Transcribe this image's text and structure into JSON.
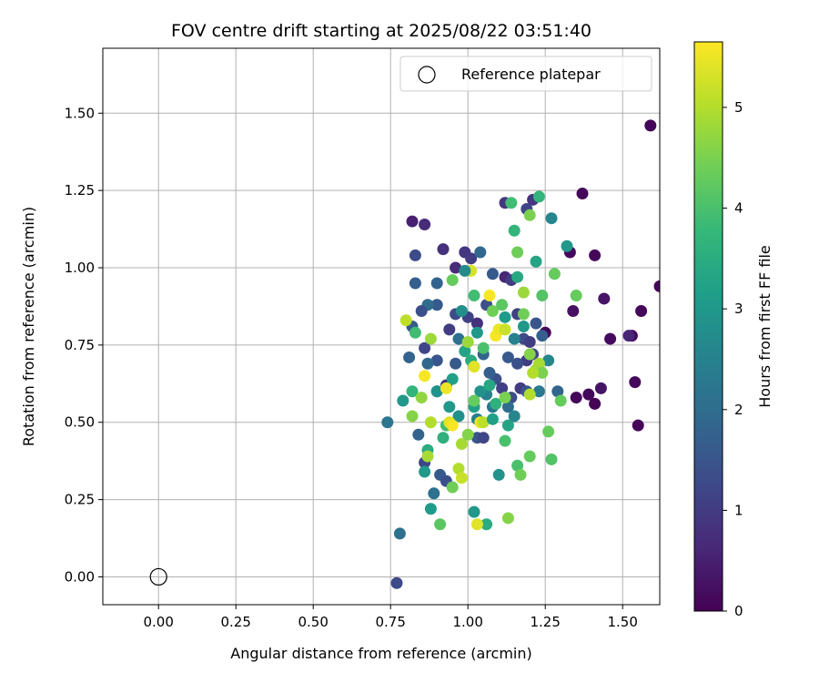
{
  "chart_data": {
    "type": "scatter",
    "title": "FOV centre drift starting at 2025/08/22 03:51:40",
    "xlabel": "Angular distance from reference (arcmin)",
    "ylabel": "Rotation from reference (arcmin)",
    "xlim": [
      -0.18,
      1.62
    ],
    "ylim": [
      -0.09,
      1.71
    ],
    "xticks": [
      0.0,
      0.25,
      0.5,
      0.75,
      1.0,
      1.25,
      1.5
    ],
    "xtick_labels": [
      "0.00",
      "0.25",
      "0.50",
      "0.75",
      "1.00",
      "1.25",
      "1.50"
    ],
    "yticks": [
      0.0,
      0.25,
      0.5,
      0.75,
      1.0,
      1.25,
      1.5
    ],
    "ytick_labels": [
      "0.00",
      "0.25",
      "0.50",
      "0.75",
      "1.00",
      "1.25",
      "1.50"
    ],
    "grid": true,
    "legend": {
      "placement": "top-right",
      "entries": [
        {
          "label": "Reference platepar",
          "marker": "open-circle"
        }
      ]
    },
    "reference_point": {
      "x": 0.0,
      "y": 0.0,
      "label": "Reference platepar"
    },
    "colorbar": {
      "label": "Hours from first FF file",
      "colormap": "viridis",
      "range": [
        0,
        5.65
      ],
      "ticks": [
        0,
        1,
        2,
        3,
        4,
        5
      ],
      "tick_labels": [
        "0",
        "1",
        "2",
        "3",
        "4",
        "5"
      ],
      "stops": [
        "#440154",
        "#482878",
        "#3e4989",
        "#31688e",
        "#26828e",
        "#1f9e89",
        "#35b779",
        "#6ece58",
        "#b5de2b",
        "#fde725"
      ]
    },
    "series": [
      {
        "columns": [
          "x",
          "y",
          "hours"
        ],
        "points": [
          [
            1.59,
            1.46,
            0.05
          ],
          [
            1.62,
            0.94,
            0.1
          ],
          [
            1.37,
            1.24,
            0.1
          ],
          [
            1.41,
            1.04,
            0.1
          ],
          [
            1.33,
            1.05,
            0.15
          ],
          [
            1.56,
            0.86,
            0.1
          ],
          [
            1.53,
            0.78,
            0.1
          ],
          [
            1.46,
            0.77,
            0.15
          ],
          [
            1.44,
            0.9,
            0.3
          ],
          [
            1.34,
            0.86,
            0.25
          ],
          [
            1.54,
            0.63,
            0.1
          ],
          [
            1.43,
            0.61,
            0.3
          ],
          [
            1.39,
            0.59,
            0.1
          ],
          [
            1.35,
            0.58,
            0.1
          ],
          [
            1.41,
            0.56,
            0.05
          ],
          [
            1.55,
            0.49,
            0.05
          ],
          [
            1.25,
            0.79,
            0.05
          ],
          [
            1.52,
            0.78,
            0.6
          ],
          [
            0.82,
            1.15,
            0.5
          ],
          [
            0.86,
            1.14,
            0.7
          ],
          [
            0.92,
            1.06,
            0.8
          ],
          [
            0.83,
            1.04,
            1.3
          ],
          [
            0.99,
            1.05,
            0.9
          ],
          [
            0.96,
            1.0,
            0.7
          ],
          [
            1.01,
            1.03,
            1.0
          ],
          [
            1.12,
            1.21,
            0.9
          ],
          [
            1.19,
            1.19,
            1.2
          ],
          [
            1.21,
            1.22,
            0.9
          ],
          [
            1.04,
            1.05,
            1.9
          ],
          [
            0.83,
            0.95,
            1.7
          ],
          [
            0.9,
            0.95,
            1.8
          ],
          [
            0.9,
            0.88,
            1.6
          ],
          [
            0.87,
            0.88,
            2.0
          ],
          [
            0.85,
            0.86,
            1.4
          ],
          [
            0.82,
            0.81,
            1.6
          ],
          [
            0.81,
            0.71,
            1.8
          ],
          [
            0.86,
            0.74,
            1.2
          ],
          [
            0.9,
            0.7,
            1.5
          ],
          [
            0.87,
            0.69,
            1.9
          ],
          [
            0.93,
            0.62,
            0.9
          ],
          [
            0.96,
            0.69,
            1.6
          ],
          [
            0.94,
            0.8,
            1.0
          ],
          [
            0.96,
            0.85,
            1.3
          ],
          [
            1.0,
            0.84,
            1.1
          ],
          [
            1.03,
            0.82,
            0.8
          ],
          [
            1.06,
            0.88,
            1.4
          ],
          [
            1.08,
            0.98,
            1.6
          ],
          [
            1.12,
            0.97,
            0.6
          ],
          [
            1.14,
            0.96,
            1.0
          ],
          [
            1.16,
            0.85,
            1.1
          ],
          [
            1.18,
            0.77,
            1.3
          ],
          [
            1.2,
            0.76,
            1.0
          ],
          [
            1.22,
            0.82,
            1.5
          ],
          [
            1.24,
            0.78,
            1.7
          ],
          [
            1.21,
            0.72,
            1.2
          ],
          [
            1.19,
            0.7,
            1.0
          ],
          [
            1.16,
            0.69,
            1.4
          ],
          [
            1.13,
            0.71,
            1.6
          ],
          [
            1.11,
            0.61,
            1.1
          ],
          [
            1.09,
            0.64,
            1.4
          ],
          [
            1.07,
            0.66,
            1.7
          ],
          [
            1.05,
            0.72,
            1.8
          ],
          [
            1.14,
            0.58,
            1.3
          ],
          [
            1.17,
            0.61,
            1.0
          ],
          [
            1.19,
            0.6,
            1.5
          ],
          [
            1.29,
            0.6,
            1.8
          ],
          [
            0.84,
            0.46,
            1.8
          ],
          [
            0.86,
            0.37,
            1.2
          ],
          [
            0.91,
            0.33,
            1.6
          ],
          [
            0.93,
            0.31,
            1.4
          ],
          [
            0.89,
            0.27,
            2.1
          ],
          [
            0.9,
            0.6,
            2.3
          ],
          [
            1.03,
            0.45,
            1.5
          ],
          [
            1.05,
            0.45,
            1.2
          ],
          [
            1.03,
            0.51,
            2.4
          ],
          [
            0.77,
            -0.02,
            1.3
          ],
          [
            0.74,
            0.5,
            2.2
          ],
          [
            0.78,
            0.14,
            2.1
          ],
          [
            1.13,
            0.55,
            2.0
          ],
          [
            1.08,
            0.55,
            2.2
          ],
          [
            1.06,
            0.59,
            2.5
          ],
          [
            1.23,
            0.6,
            2.3
          ],
          [
            0.79,
            0.57,
            3.0
          ],
          [
            0.82,
            0.6,
            3.7
          ],
          [
            0.86,
            0.34,
            3.0
          ],
          [
            0.87,
            0.41,
            3.5
          ],
          [
            0.88,
            0.22,
            3.1
          ],
          [
            0.9,
            0.6,
            2.9
          ],
          [
            0.92,
            0.45,
            3.6
          ],
          [
            0.94,
            0.55,
            3.0
          ],
          [
            0.95,
            0.64,
            3.2
          ],
          [
            0.97,
            0.52,
            2.8
          ],
          [
            0.98,
            0.86,
            2.8
          ],
          [
            0.99,
            0.73,
            3.3
          ],
          [
            1.01,
            0.7,
            3.5
          ],
          [
            1.02,
            0.55,
            3.2
          ],
          [
            1.04,
            0.6,
            2.9
          ],
          [
            1.07,
            0.62,
            3.4
          ],
          [
            1.09,
            0.56,
            3.6
          ],
          [
            1.1,
            0.33,
            2.9
          ],
          [
            1.13,
            0.49,
            3.3
          ],
          [
            1.15,
            0.52,
            2.6
          ],
          [
            1.12,
            0.84,
            3.1
          ],
          [
            1.16,
            0.97,
            3.4
          ],
          [
            1.18,
            0.81,
            3.0
          ],
          [
            1.22,
            1.02,
            3.3
          ],
          [
            1.27,
            1.16,
            2.6
          ],
          [
            1.23,
            1.23,
            3.7
          ],
          [
            1.26,
            0.7,
            2.6
          ],
          [
            1.32,
            1.07,
            3.0
          ],
          [
            1.02,
            0.21,
            3.0
          ],
          [
            1.06,
            0.17,
            3.5
          ],
          [
            1.14,
            1.21,
            3.9
          ],
          [
            1.15,
            1.12,
            3.7
          ],
          [
            1.02,
            0.91,
            3.9
          ],
          [
            0.93,
            0.49,
            3.9
          ],
          [
            0.91,
            0.17,
            4.2
          ],
          [
            0.95,
            0.29,
            4.4
          ],
          [
            0.82,
            0.52,
            4.6
          ],
          [
            0.83,
            0.79,
            3.9
          ],
          [
            0.88,
            0.77,
            4.8
          ],
          [
            0.95,
            0.96,
            4.3
          ],
          [
            0.98,
            0.43,
            4.9
          ],
          [
            1.0,
            0.46,
            4.6
          ],
          [
            1.02,
            0.57,
            4.3
          ],
          [
            1.05,
            0.74,
            4.0
          ],
          [
            1.08,
            0.86,
            4.4
          ],
          [
            1.11,
            0.88,
            4.2
          ],
          [
            1.12,
            0.44,
            4.0
          ],
          [
            1.13,
            0.19,
            4.6
          ],
          [
            1.16,
            0.36,
            4.0
          ],
          [
            1.17,
            0.33,
            4.4
          ],
          [
            1.2,
            0.39,
            4.3
          ],
          [
            1.22,
            0.67,
            4.7
          ],
          [
            1.23,
            0.69,
            4.9
          ],
          [
            1.24,
            0.66,
            4.5
          ],
          [
            1.26,
            0.47,
            4.3
          ],
          [
            1.27,
            0.38,
            4.1
          ],
          [
            1.28,
            0.98,
            4.3
          ],
          [
            1.24,
            0.91,
            4.1
          ],
          [
            1.2,
            1.17,
            4.5
          ],
          [
            1.35,
            0.91,
            4.3
          ],
          [
            1.3,
            0.57,
            4.3
          ],
          [
            1.16,
            1.05,
            4.4
          ],
          [
            1.18,
            0.92,
            4.8
          ],
          [
            1.2,
            0.72,
            4.6
          ],
          [
            1.1,
            0.8,
            4.9
          ],
          [
            0.8,
            0.83,
            5.1
          ],
          [
            0.85,
            0.58,
            4.7
          ],
          [
            0.86,
            0.65,
            5.6
          ],
          [
            0.87,
            0.39,
            4.9
          ],
          [
            0.88,
            0.5,
            5.0
          ],
          [
            0.93,
            0.61,
            5.5
          ],
          [
            0.94,
            0.5,
            5.4
          ],
          [
            0.97,
            0.35,
            5.0
          ],
          [
            0.98,
            0.32,
            5.2
          ],
          [
            1.01,
            0.99,
            5.3
          ],
          [
            1.02,
            0.68,
            5.4
          ],
          [
            1.04,
            0.5,
            5.5
          ],
          [
            1.03,
            0.17,
            5.4
          ],
          [
            1.05,
            0.5,
            5.1
          ],
          [
            1.07,
            0.91,
            5.6
          ],
          [
            1.09,
            0.78,
            5.6
          ],
          [
            1.1,
            0.8,
            5.5
          ],
          [
            1.12,
            0.8,
            5.2
          ],
          [
            1.21,
            0.66,
            5.0
          ],
          [
            1.2,
            0.59,
            5.0
          ],
          [
            0.95,
            0.49,
            5.6
          ],
          [
            1.18,
            0.85,
            4.4
          ],
          [
            0.99,
            0.99,
            2.7
          ],
          [
            1.03,
            0.79,
            3.0
          ],
          [
            1.08,
            0.51,
            3.2
          ],
          [
            1.15,
            0.77,
            2.5
          ],
          [
            0.97,
            0.77,
            2.1
          ],
          [
            1.0,
            0.76,
            4.8
          ],
          [
            1.12,
            0.58,
            4.5
          ]
        ]
      }
    ]
  }
}
